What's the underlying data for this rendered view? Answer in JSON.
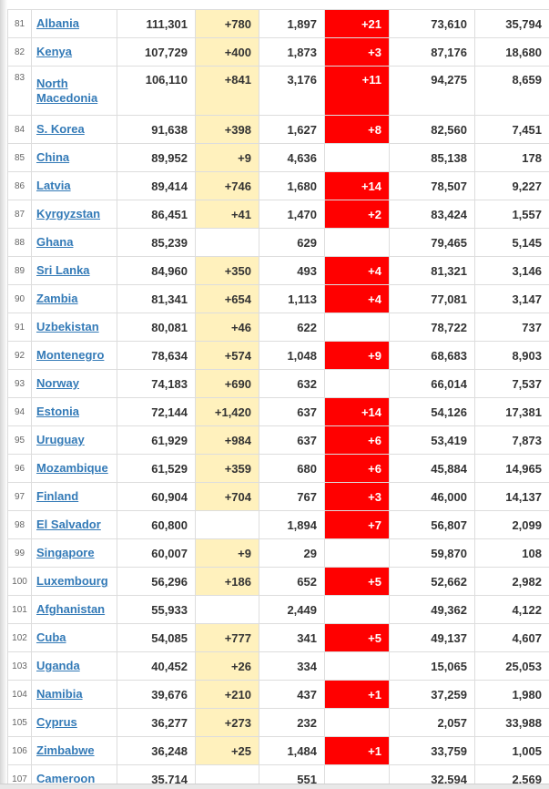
{
  "rows": [
    {
      "rank": "81",
      "country": "Albania",
      "total": "111,301",
      "new_cases": "+780",
      "deaths": "1,897",
      "new_deaths": "+21",
      "recovered": "73,610",
      "active": "35,794"
    },
    {
      "rank": "82",
      "country": "Kenya",
      "total": "107,729",
      "new_cases": "+400",
      "deaths": "1,873",
      "new_deaths": "+3",
      "recovered": "87,176",
      "active": "18,680"
    },
    {
      "rank": "83",
      "country": "North Macedonia",
      "total": "106,110",
      "new_cases": "+841",
      "deaths": "3,176",
      "new_deaths": "+11",
      "recovered": "94,275",
      "active": "8,659"
    },
    {
      "rank": "84",
      "country": "S. Korea",
      "total": "91,638",
      "new_cases": "+398",
      "deaths": "1,627",
      "new_deaths": "+8",
      "recovered": "82,560",
      "active": "7,451"
    },
    {
      "rank": "85",
      "country": "China",
      "total": "89,952",
      "new_cases": "+9",
      "deaths": "4,636",
      "new_deaths": "",
      "recovered": "85,138",
      "active": "178"
    },
    {
      "rank": "86",
      "country": "Latvia",
      "total": "89,414",
      "new_cases": "+746",
      "deaths": "1,680",
      "new_deaths": "+14",
      "recovered": "78,507",
      "active": "9,227"
    },
    {
      "rank": "87",
      "country": "Kyrgyzstan",
      "total": "86,451",
      "new_cases": "+41",
      "deaths": "1,470",
      "new_deaths": "+2",
      "recovered": "83,424",
      "active": "1,557"
    },
    {
      "rank": "88",
      "country": "Ghana",
      "total": "85,239",
      "new_cases": "",
      "deaths": "629",
      "new_deaths": "",
      "recovered": "79,465",
      "active": "5,145"
    },
    {
      "rank": "89",
      "country": "Sri Lanka",
      "total": "84,960",
      "new_cases": "+350",
      "deaths": "493",
      "new_deaths": "+4",
      "recovered": "81,321",
      "active": "3,146"
    },
    {
      "rank": "90",
      "country": "Zambia",
      "total": "81,341",
      "new_cases": "+654",
      "deaths": "1,113",
      "new_deaths": "+4",
      "recovered": "77,081",
      "active": "3,147"
    },
    {
      "rank": "91",
      "country": "Uzbekistan",
      "total": "80,081",
      "new_cases": "+46",
      "deaths": "622",
      "new_deaths": "",
      "recovered": "78,722",
      "active": "737"
    },
    {
      "rank": "92",
      "country": "Montenegro",
      "total": "78,634",
      "new_cases": "+574",
      "deaths": "1,048",
      "new_deaths": "+9",
      "recovered": "68,683",
      "active": "8,903"
    },
    {
      "rank": "93",
      "country": "Norway",
      "total": "74,183",
      "new_cases": "+690",
      "deaths": "632",
      "new_deaths": "",
      "recovered": "66,014",
      "active": "7,537"
    },
    {
      "rank": "94",
      "country": "Estonia",
      "total": "72,144",
      "new_cases": "+1,420",
      "deaths": "637",
      "new_deaths": "+14",
      "recovered": "54,126",
      "active": "17,381"
    },
    {
      "rank": "95",
      "country": "Uruguay",
      "total": "61,929",
      "new_cases": "+984",
      "deaths": "637",
      "new_deaths": "+6",
      "recovered": "53,419",
      "active": "7,873"
    },
    {
      "rank": "96",
      "country": "Mozambique",
      "total": "61,529",
      "new_cases": "+359",
      "deaths": "680",
      "new_deaths": "+6",
      "recovered": "45,884",
      "active": "14,965"
    },
    {
      "rank": "97",
      "country": "Finland",
      "total": "60,904",
      "new_cases": "+704",
      "deaths": "767",
      "new_deaths": "+3",
      "recovered": "46,000",
      "active": "14,137"
    },
    {
      "rank": "98",
      "country": "El Salvador",
      "total": "60,800",
      "new_cases": "",
      "deaths": "1,894",
      "new_deaths": "+7",
      "recovered": "56,807",
      "active": "2,099"
    },
    {
      "rank": "99",
      "country": "Singapore",
      "total": "60,007",
      "new_cases": "+9",
      "deaths": "29",
      "new_deaths": "",
      "recovered": "59,870",
      "active": "108"
    },
    {
      "rank": "100",
      "country": "Luxembourg",
      "total": "56,296",
      "new_cases": "+186",
      "deaths": "652",
      "new_deaths": "+5",
      "recovered": "52,662",
      "active": "2,982"
    },
    {
      "rank": "101",
      "country": "Afghanistan",
      "total": "55,933",
      "new_cases": "",
      "deaths": "2,449",
      "new_deaths": "",
      "recovered": "49,362",
      "active": "4,122"
    },
    {
      "rank": "102",
      "country": "Cuba",
      "total": "54,085",
      "new_cases": "+777",
      "deaths": "341",
      "new_deaths": "+5",
      "recovered": "49,137",
      "active": "4,607"
    },
    {
      "rank": "103",
      "country": "Uganda",
      "total": "40,452",
      "new_cases": "+26",
      "deaths": "334",
      "new_deaths": "",
      "recovered": "15,065",
      "active": "25,053"
    },
    {
      "rank": "104",
      "country": "Namibia",
      "total": "39,676",
      "new_cases": "+210",
      "deaths": "437",
      "new_deaths": "+1",
      "recovered": "37,259",
      "active": "1,980"
    },
    {
      "rank": "105",
      "country": "Cyprus",
      "total": "36,277",
      "new_cases": "+273",
      "deaths": "232",
      "new_deaths": "",
      "recovered": "2,057",
      "active": "33,988"
    },
    {
      "rank": "106",
      "country": "Zimbabwe",
      "total": "36,248",
      "new_cases": "+25",
      "deaths": "1,484",
      "new_deaths": "+1",
      "recovered": "33,759",
      "active": "1,005"
    },
    {
      "rank": "107",
      "country": "Cameroon",
      "total": "35,714",
      "new_cases": "",
      "deaths": "551",
      "new_deaths": "",
      "recovered": "32,594",
      "active": "2,569"
    }
  ],
  "colors": {
    "new_cases_bg": "#fff1bd",
    "new_deaths_bg": "#ff0000",
    "link": "#337ab7",
    "border": "#dddddd"
  }
}
